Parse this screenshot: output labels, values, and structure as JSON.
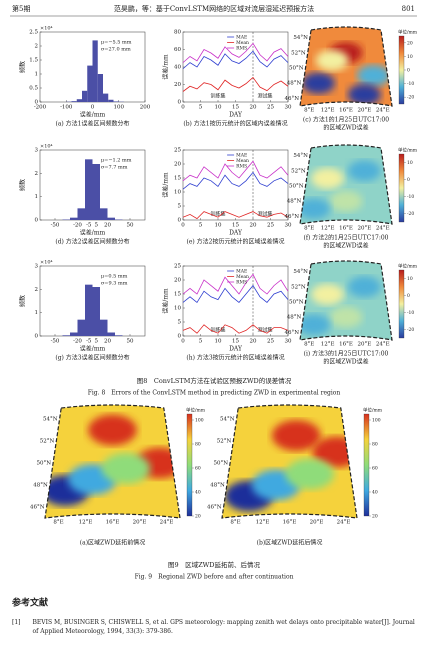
{
  "header": {
    "issue": "第5期",
    "title": "范昊鹏，等：基于ConvLSTM网络的区域对流层湿延迟预报方法",
    "page": "801"
  },
  "chart_data": [
    {
      "type": "histogram",
      "exponent_label": "×10⁴",
      "ylabel": "频数",
      "xlabel": "误差/mm",
      "legend": [
        "μ=−5.5 mm",
        "σ=27.0 mm"
      ],
      "color": "#4b4fa6",
      "bins": [
        -200,
        -180,
        -160,
        -140,
        -120,
        -100,
        -80,
        -60,
        -40,
        -20,
        0,
        20,
        40,
        60,
        80,
        100,
        120,
        140,
        160,
        180,
        200
      ],
      "counts": [
        0,
        0,
        0,
        0,
        0,
        0.01,
        0.03,
        0.1,
        0.4,
        1.3,
        2.2,
        1.0,
        0.3,
        0.08,
        0.02,
        0.01,
        0,
        0,
        0,
        0
      ],
      "xlim": [
        -200,
        200
      ],
      "xticks": [
        -200,
        -100,
        0,
        100,
        200
      ],
      "ylim": [
        0,
        2.5
      ],
      "yticks": [
        0,
        0.5,
        1,
        1.5,
        2,
        2.5
      ],
      "caption": [
        "(a) 方法1误差区间频数分布"
      ]
    },
    {
      "type": "line",
      "ylabel": "误差/mm",
      "xlabel": "DAY",
      "annotations": [
        "训练集",
        "测试集"
      ],
      "split": 20,
      "x": [
        0,
        2,
        4,
        6,
        8,
        10,
        12,
        14,
        16,
        18,
        20,
        22,
        24,
        26,
        28,
        30
      ],
      "series": [
        {
          "name": "MAE",
          "color": "#2f3fd0",
          "values": [
            38,
            45,
            40,
            52,
            48,
            42,
            55,
            47,
            44,
            50,
            58,
            46,
            40,
            49,
            53,
            45
          ]
        },
        {
          "name": "Mean",
          "color": "#e02424",
          "values": [
            12,
            18,
            15,
            22,
            20,
            14,
            25,
            19,
            16,
            21,
            28,
            17,
            13,
            20,
            24,
            18
          ]
        },
        {
          "name": "RMS",
          "color": "#c830c8",
          "values": [
            45,
            52,
            47,
            60,
            56,
            50,
            63,
            55,
            51,
            58,
            67,
            54,
            47,
            57,
            61,
            52
          ]
        }
      ],
      "xlim": [
        0,
        30
      ],
      "xticks": [
        0,
        5,
        10,
        15,
        20,
        25,
        30
      ],
      "ylim": [
        0,
        80
      ],
      "yticks": [
        0,
        20,
        40,
        60,
        80
      ],
      "caption": [
        "(b) 方法1按历元统计的区域内误差情况"
      ]
    },
    {
      "type": "map",
      "lat_labels": [
        "54°N",
        "52°N",
        "50°N",
        "48°N",
        "46°N"
      ],
      "lon_labels": [
        "8°E",
        "12°E",
        "16°E",
        "20°E",
        "24°E"
      ],
      "colorbar_title": "单位/mm",
      "colormap": [
        "#2b3c9e",
        "#4fb0d8",
        "#f3f0a0",
        "#f08a3c",
        "#b81d1d"
      ],
      "clim": [
        -25,
        25
      ],
      "cticks": [
        -20,
        -10,
        0,
        10,
        20
      ],
      "caption": [
        "(c) 方法1的1月25日UTC17:00",
        "的区域ZWD误差"
      ]
    },
    {
      "type": "histogram",
      "exponent_label": "×10⁴",
      "ylabel": "频数",
      "xlabel": "误差/mm",
      "legend": [
        "μ=−1.2 mm",
        "σ=7.7 mm"
      ],
      "color": "#4b4fa6",
      "bins": [
        -70,
        -60,
        -50,
        -40,
        -30,
        -20,
        -10,
        0,
        10,
        20,
        30,
        40,
        50,
        60,
        70
      ],
      "counts": [
        0,
        0,
        0,
        0.02,
        0.1,
        0.5,
        2.6,
        2.4,
        0.5,
        0.1,
        0.02,
        0,
        0,
        0
      ],
      "xlim": [
        -70,
        70
      ],
      "xticks": [
        -50,
        -20,
        -5,
        5,
        20,
        50
      ],
      "ylim": [
        0,
        3
      ],
      "yticks": [
        0,
        1,
        2,
        3
      ],
      "caption": [
        "(d) 方法2误差区间频数分布"
      ]
    },
    {
      "type": "line",
      "ylabel": "误差/mm",
      "xlabel": "DAY",
      "annotations": [
        "训练集",
        "测试集"
      ],
      "split": 20,
      "x": [
        0,
        2,
        4,
        6,
        8,
        10,
        12,
        14,
        16,
        18,
        20,
        22,
        24,
        26,
        28,
        30
      ],
      "series": [
        {
          "name": "MAE",
          "color": "#2f3fd0",
          "values": [
            11,
            13,
            12,
            15,
            14,
            12,
            16,
            13,
            12,
            14,
            17,
            13,
            12,
            14,
            15,
            13
          ]
        },
        {
          "name": "Mean",
          "color": "#e02424",
          "values": [
            1,
            2,
            0.5,
            3,
            2,
            1,
            3,
            2,
            1,
            2,
            3,
            1.5,
            1,
            2,
            2.5,
            1
          ]
        },
        {
          "name": "RMS",
          "color": "#c830c8",
          "values": [
            14,
            16,
            15,
            19,
            17,
            15,
            20,
            17,
            15,
            18,
            21,
            16,
            15,
            17,
            19,
            16
          ]
        }
      ],
      "xlim": [
        0,
        30
      ],
      "xticks": [
        0,
        5,
        10,
        15,
        20,
        25,
        30
      ],
      "ylim": [
        0,
        25
      ],
      "yticks": [
        0,
        5,
        10,
        15,
        20,
        25
      ],
      "caption": [
        "(e) 方法2按历元统计的区域误差情况"
      ]
    },
    {
      "type": "map",
      "lat_labels": [
        "54°N",
        "52°N",
        "50°N",
        "48°N",
        "46°N"
      ],
      "lon_labels": [
        "8°E",
        "12°E",
        "16°E",
        "20°E",
        "24°E"
      ],
      "colorbar_title": "单位/mm",
      "colormap": [
        "#2b3c9e",
        "#4fb0d8",
        "#f3f0a0",
        "#f08a3c",
        "#b81d1d"
      ],
      "clim": [
        -25,
        15
      ],
      "cticks": [
        -20,
        -10,
        0,
        10
      ],
      "caption": [
        "(f) 方法2的1月25日UTC17:00",
        "的区域ZWD误差"
      ]
    },
    {
      "type": "histogram",
      "exponent_label": "×10⁴",
      "ylabel": "频数",
      "xlabel": "误差/mm",
      "legend": [
        "μ=0.5 mm",
        "σ=9.3 mm"
      ],
      "color": "#4b4fa6",
      "bins": [
        -70,
        -60,
        -50,
        -40,
        -30,
        -20,
        -10,
        0,
        10,
        20,
        30,
        40,
        50,
        60,
        70
      ],
      "counts": [
        0,
        0,
        0,
        0.03,
        0.15,
        0.7,
        2.2,
        2.1,
        0.7,
        0.15,
        0.03,
        0,
        0,
        0
      ],
      "xlim": [
        -70,
        70
      ],
      "xticks": [
        -50,
        -20,
        -5,
        5,
        20,
        50
      ],
      "ylim": [
        0,
        3
      ],
      "yticks": [
        0,
        1,
        2,
        3
      ],
      "caption": [
        "(g) 方法3误差区间频数分布"
      ]
    },
    {
      "type": "line",
      "ylabel": "误差/mm",
      "xlabel": "DAY",
      "annotations": [
        "训练集",
        "测试集"
      ],
      "split": 20,
      "x": [
        0,
        2,
        4,
        6,
        8,
        10,
        12,
        14,
        16,
        18,
        20,
        22,
        24,
        26,
        28,
        30
      ],
      "series": [
        {
          "name": "MAE",
          "color": "#2f3fd0",
          "values": [
            12,
            14,
            12,
            16,
            14,
            13,
            17,
            14,
            12,
            15,
            18,
            14,
            12,
            15,
            16,
            13
          ]
        },
        {
          "name": "Mean",
          "color": "#e02424",
          "values": [
            2,
            3,
            1,
            4,
            2,
            1,
            4,
            3,
            1,
            2,
            4,
            2,
            1,
            3,
            3,
            2
          ]
        },
        {
          "name": "RMS",
          "color": "#c830c8",
          "values": [
            15,
            17,
            15,
            20,
            18,
            16,
            21,
            18,
            15,
            19,
            22,
            17,
            15,
            18,
            20,
            16
          ]
        }
      ],
      "xlim": [
        0,
        30
      ],
      "xticks": [
        0,
        5,
        10,
        15,
        20,
        25,
        30
      ],
      "ylim": [
        0,
        25
      ],
      "yticks": [
        0,
        5,
        10,
        15,
        20,
        25
      ],
      "caption": [
        "(h) 方法3按历元统计的区域误差情况"
      ]
    },
    {
      "type": "map",
      "lat_labels": [
        "54°N",
        "52°N",
        "50°N",
        "48°N",
        "46°N"
      ],
      "lon_labels": [
        "8°E",
        "12°E",
        "16°E",
        "20°E",
        "24°E"
      ],
      "colorbar_title": "单位/mm",
      "colormap": [
        "#2b3c9e",
        "#4fb0d8",
        "#f3f0a0",
        "#f08a3c",
        "#b81d1d"
      ],
      "clim": [
        -25,
        15
      ],
      "cticks": [
        -20,
        -10,
        0,
        10
      ],
      "caption": [
        "(i) 方法3的1月25日UTC17:00",
        "的区域ZWD误差"
      ]
    },
    {
      "type": "map",
      "lat_labels": [
        "54°N",
        "52°N",
        "50°N",
        "48°N",
        "46°N"
      ],
      "lon_labels": [
        "8°E",
        "12°E",
        "16°E",
        "20°E",
        "24°E"
      ],
      "colorbar_title": "单位/mm",
      "colormap": [
        "#1f2f9a",
        "#3fa9e0",
        "#8fdc7a",
        "#f5d23c",
        "#d7301f"
      ],
      "clim": [
        20,
        105
      ],
      "cticks": [
        20,
        40,
        60,
        80,
        100
      ],
      "caption": [
        "(a)区域ZWD延拓前情况"
      ]
    },
    {
      "type": "map",
      "lat_labels": [
        "54°N",
        "52°N",
        "50°N",
        "48°N",
        "46°N"
      ],
      "lon_labels": [
        "8°E",
        "12°E",
        "16°E",
        "20°E",
        "24°E"
      ],
      "colorbar_title": "单位/mm",
      "colormap": [
        "#1f2f9a",
        "#3fa9e0",
        "#8fdc7a",
        "#f5d23c",
        "#d7301f"
      ],
      "clim": [
        20,
        105
      ],
      "cticks": [
        20,
        40,
        60,
        80,
        100
      ],
      "caption": [
        "(b)区域ZWD延拓后情况"
      ]
    }
  ],
  "figure8": {
    "caption_cn": "图8　ConvLSTM方法在试验区预报ZWD的误差情况",
    "caption_en": "Fig. 8　Errors of the ConvLSTM method in predicting ZWD in experimental region"
  },
  "figure9": {
    "caption_cn": "图9　区域ZWD延拓前、后情况",
    "caption_en": "Fig. 9　Regional ZWD before and after continuation"
  },
  "references": {
    "title": "参考文献",
    "items": [
      {
        "index": "[1]",
        "text": "BEVIS M, BUSINGER S, CHISWELL S, et al. GPS meteorology: mapping zenith wet delays onto precipitable water[J]. Journal of Applied Meteorology, 1994, 33(3): 379-386."
      }
    ]
  }
}
